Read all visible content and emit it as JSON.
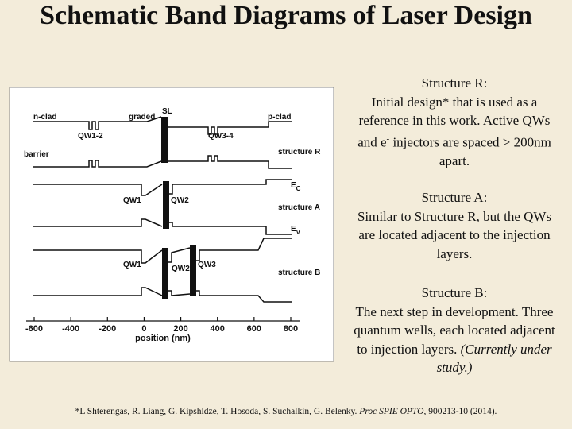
{
  "title": "Schematic Band Diagrams of Laser Design",
  "figure": {
    "labels": [
      "n-clad",
      "graded",
      "SL",
      "p-clad",
      "QW1-2",
      "QW3-4",
      "barrier",
      "structure R",
      "E",
      "C",
      "QW1",
      "QW2",
      "structure A",
      "E",
      "V",
      "QW1",
      "QW2",
      "QW3",
      "structure B"
    ],
    "x_axis": {
      "label": "position (nm)",
      "ticks": [
        -600,
        -400,
        -200,
        0,
        200,
        400,
        600,
        800
      ]
    }
  },
  "descriptions": [
    {
      "heading": "Structure R:",
      "body": [
        "Initial design* that is used as a reference in this work. Active QWs and e",
        "-",
        " injectors are spaced > 200nm apart."
      ]
    },
    {
      "heading": "Structure A:",
      "body": "Similar to Structure R, but the QWs are located adjacent to the injection layers."
    },
    {
      "heading": "Structure B:",
      "body": [
        "The next step in development. Three quantum wells, each located adjacent to injection layers.",
        "(Currently under study.)"
      ]
    }
  ],
  "reference": [
    "*L Shterengas, R. Liang, G. Kipshidze, T. Hosoda, S. Suchalkin, G. Belenky. ",
    "Proc SPIE OPTO",
    ", 900213-10 (2014)."
  ]
}
